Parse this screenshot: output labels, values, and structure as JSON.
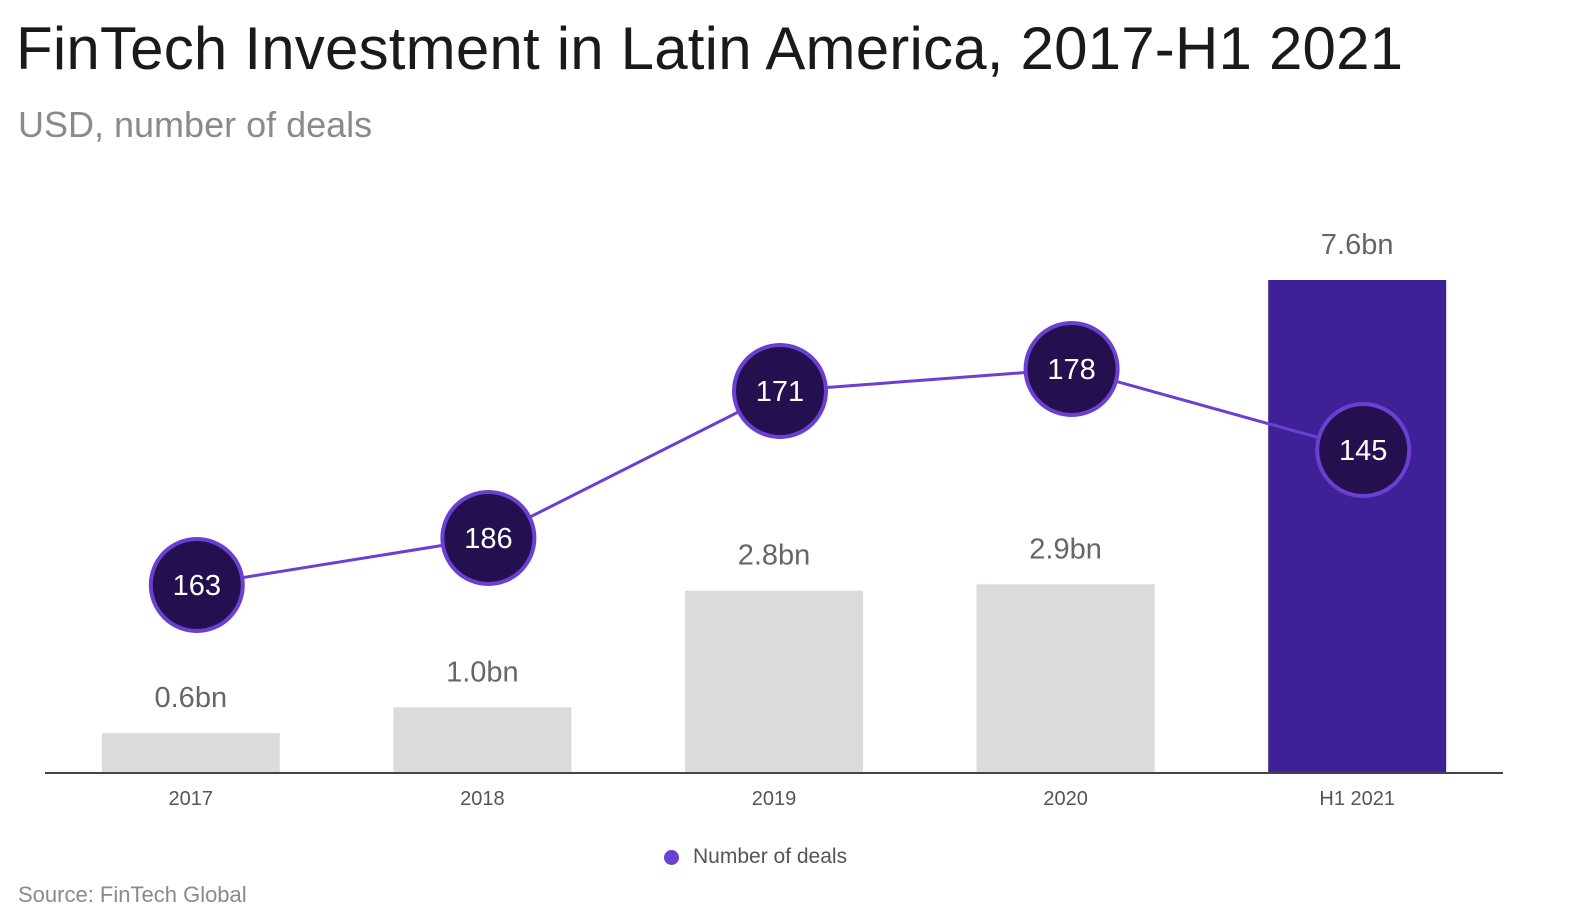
{
  "header": {
    "title": "FinTech Investment in Latin America, 2017-H1 2021",
    "subtitle": "USD, number of deals"
  },
  "footer": {
    "source": "Source: FinTech Global"
  },
  "legend": {
    "deals_label": "Number of deals"
  },
  "colors": {
    "bar_default": "#dcdadd",
    "bar_highlight": "#3e2196",
    "line": "#6a3fd1",
    "marker_fill": "#24104f",
    "marker_stroke": "#6a3fd1",
    "axis": "#444444"
  },
  "chart_data": {
    "type": "bar",
    "categories": [
      "2017",
      "2018",
      "2019",
      "2020",
      "H1 2021"
    ],
    "series": [
      {
        "type": "bar",
        "values": [
          0.6,
          1.0,
          2.8,
          2.9,
          7.6
        ],
        "labels": [
          "0.6bn",
          "1.0bn",
          "2.8bn",
          "2.9bn",
          "7.6bn"
        ],
        "highlight_index": 4
      },
      {
        "name": "Number of deals",
        "type": "line",
        "values": [
          163,
          186,
          171,
          178,
          145
        ]
      }
    ],
    "grid": false,
    "legend_position": "bottom-center"
  }
}
